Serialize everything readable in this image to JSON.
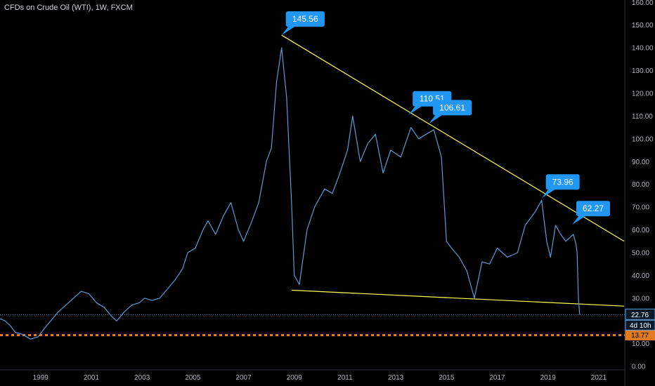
{
  "chart_data": {
    "type": "line",
    "title": "CFDs on Crude Oil (WTI), 1W, FXCM",
    "symbol": "CFDs on Crude Oil (WTI)",
    "interval": "1W",
    "source": "FXCM",
    "x_range": [
      1997.4,
      2022.0
    ],
    "ylim": [
      -1.5,
      161
    ],
    "y_ticks": [
      0,
      10,
      20,
      30,
      40,
      50,
      60,
      70,
      80,
      90,
      100,
      110,
      120,
      130,
      140,
      150,
      160
    ],
    "y_tick_labels": [
      "0.00",
      "10.00",
      "20.00",
      "30.00",
      "40.00",
      "50.00",
      "60.00",
      "70.00",
      "80.00",
      "90.00",
      "100.00",
      "110.00",
      "120.00",
      "130.00",
      "140.00",
      "150.00",
      "160.00"
    ],
    "x_ticks": [
      1999,
      2001,
      2003,
      2005,
      2007,
      2009,
      2011,
      2013,
      2015,
      2017,
      2019,
      2021
    ],
    "x_tick_labels": [
      "1999",
      "2001",
      "2003",
      "2005",
      "2007",
      "2009",
      "2011",
      "2013",
      "2015",
      "2017",
      "2019",
      "2021"
    ],
    "grid": false,
    "series": [
      {
        "color": "#5b9bd5",
        "x": [
          1997.4,
          1997.6,
          1997.8,
          1998.0,
          1998.3,
          1998.6,
          1998.9,
          1999.1,
          1999.4,
          1999.7,
          2000.0,
          2000.3,
          2000.6,
          2000.9,
          2001.2,
          2001.5,
          2001.8,
          2002.0,
          2002.3,
          2002.6,
          2002.9,
          2003.1,
          2003.4,
          2003.7,
          2004.0,
          2004.3,
          2004.6,
          2004.8,
          2005.1,
          2005.4,
          2005.6,
          2005.9,
          2006.2,
          2006.5,
          2006.8,
          2007.0,
          2007.3,
          2007.6,
          2007.9,
          2008.1,
          2008.3,
          2008.5,
          2008.7,
          2008.9,
          2009.0,
          2009.2,
          2009.5,
          2009.8,
          2010.2,
          2010.5,
          2010.8,
          2011.1,
          2011.3,
          2011.6,
          2011.9,
          2012.2,
          2012.5,
          2012.8,
          2013.2,
          2013.6,
          2013.9,
          2014.2,
          2014.5,
          2014.8,
          2015.0,
          2015.2,
          2015.5,
          2015.8,
          2016.1,
          2016.4,
          2016.7,
          2017.0,
          2017.4,
          2017.8,
          2018.1,
          2018.5,
          2018.75,
          2018.95,
          2019.1,
          2019.3,
          2019.5,
          2019.7,
          2020.0,
          2020.1,
          2020.15,
          2020.2,
          2020.25
        ],
        "y": [
          21,
          20,
          18,
          15,
          14,
          12,
          13,
          16,
          20,
          24,
          27,
          30,
          33,
          32,
          28,
          26,
          22,
          20,
          24,
          27,
          28,
          30,
          29,
          30,
          34,
          38,
          43,
          50,
          52,
          60,
          64,
          58,
          66,
          72,
          60,
          55,
          63,
          72,
          90,
          96,
          125,
          140,
          118,
          70,
          40,
          36,
          60,
          70,
          78,
          76,
          85,
          95,
          110,
          90,
          98,
          102,
          85,
          95,
          92,
          105,
          100,
          102,
          104,
          92,
          55,
          52,
          48,
          42,
          30,
          46,
          45,
          52,
          48,
          50,
          62,
          68,
          73,
          55,
          48,
          62,
          58,
          55,
          58,
          54,
          50,
          30,
          22.76
        ]
      }
    ],
    "annotations": {
      "callouts": [
        {
          "label": "145.56",
          "x": 2008.5,
          "y": 145.56
        },
        {
          "label": "110.51",
          "x": 2013.5,
          "y": 110.51
        },
        {
          "label": "106.61",
          "x": 2014.3,
          "y": 106.61
        },
        {
          "label": "73.96",
          "x": 2018.75,
          "y": 73.96
        },
        {
          "label": "62.27",
          "x": 2019.95,
          "y": 62.27
        }
      ],
      "trendlines": [
        {
          "name": "resistance",
          "color": "#ffff55",
          "from": [
            2008.5,
            145.56
          ],
          "to": [
            2022.0,
            55.0
          ]
        },
        {
          "name": "support",
          "color": "#ffff55",
          "from": [
            2008.9,
            33.5
          ],
          "to": [
            2022.0,
            26.5
          ]
        }
      ],
      "price_lines": [
        {
          "name": "last-price",
          "value": 22.76,
          "label": "22.76",
          "color": "#5b9bd5",
          "style": "dotted"
        },
        {
          "name": "support-level",
          "value": 13.77,
          "label": "13.77",
          "color": "#e07b22",
          "style": "dashed"
        }
      ],
      "countdown": "4d 10h"
    },
    "colors": {
      "background": "#000000",
      "line": "#5b9bd5",
      "trendline": "#ffff55",
      "callout_bg": "#2196f3",
      "last_price": "#5b9bd5",
      "orange_level": "#e07b22",
      "axis_text": "#b2b5be"
    }
  }
}
